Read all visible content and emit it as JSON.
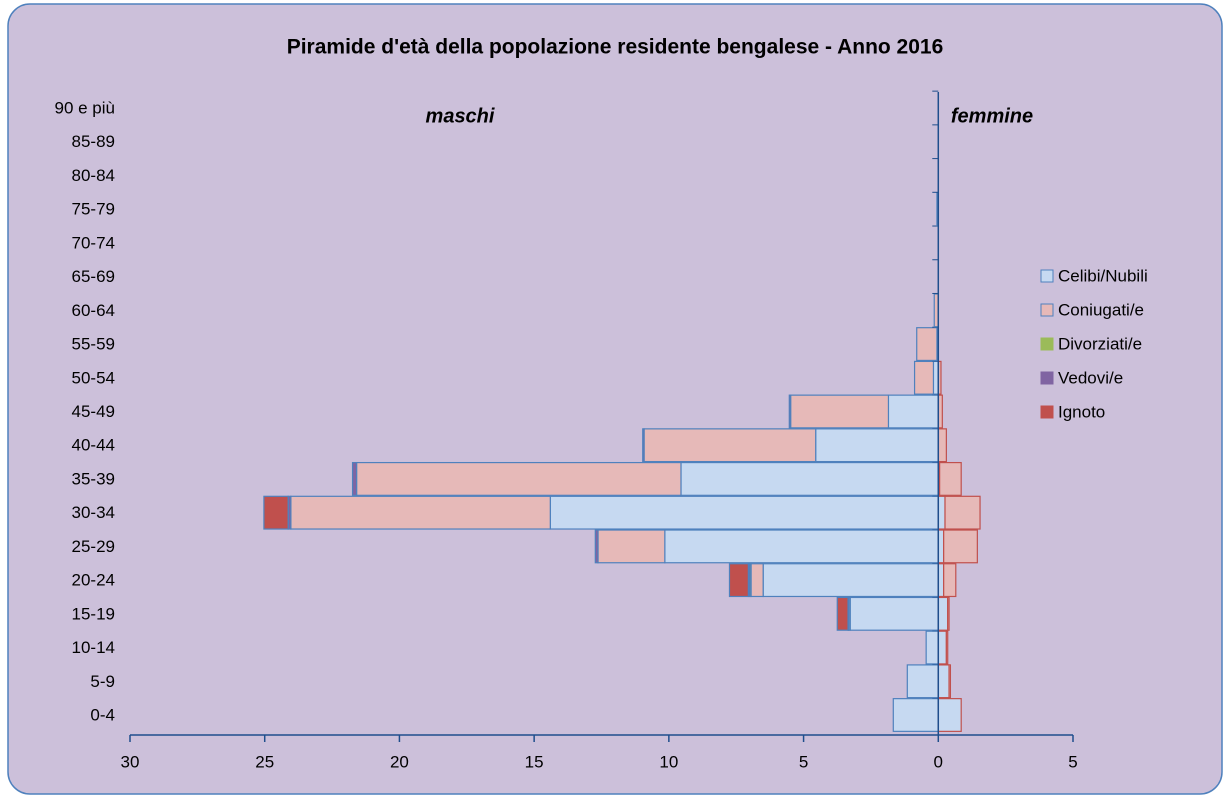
{
  "chart_data": {
    "type": "pyramid",
    "title": "Piramide d'età della popolazione residente  bengalese - Anno 2016",
    "male_label": "maschi",
    "female_label": "femmine",
    "male_color": "#1f4e8c",
    "female_color": "#c0504d",
    "categories": [
      "0-4",
      "5-9",
      "10-14",
      "15-19",
      "20-24",
      "25-29",
      "30-34",
      "35-39",
      "40-44",
      "45-49",
      "50-54",
      "55-59",
      "60-64",
      "65-69",
      "70-74",
      "75-79",
      "80-84",
      "85-89",
      "90 e più"
    ],
    "series": [
      {
        "name": "Celibi/Nubili",
        "color": "#c6d9f1",
        "male": [
          -1.67,
          -1.15,
          -0.45,
          -3.27,
          -6.5,
          -10.15,
          -14.4,
          -9.55,
          -4.55,
          -1.85,
          -0.18,
          -0.05,
          0,
          0,
          0,
          0,
          0,
          0,
          0
        ],
        "female": [
          0.85,
          0.4,
          0.3,
          0.35,
          0.2,
          0.2,
          0.25,
          0.05,
          0,
          0,
          0,
          0,
          0,
          0,
          0,
          0,
          0,
          0,
          0
        ]
      },
      {
        "name": "Coniugati/e",
        "color": "#e6b9b8",
        "male": [
          0,
          0,
          0,
          -0.05,
          -0.45,
          -2.48,
          -9.63,
          -12.04,
          -6.37,
          -3.63,
          -0.7,
          -0.75,
          -0.15,
          0,
          0,
          -0.05,
          0,
          0,
          0
        ],
        "female": [
          0,
          0.05,
          0.05,
          0.05,
          0.45,
          1.25,
          1.3,
          0.8,
          0.3,
          0.15,
          0.1,
          0,
          0,
          0,
          0,
          0,
          0,
          0,
          0
        ]
      },
      {
        "name": "Divorziati/e",
        "color": "#9bbb59",
        "male": [
          0,
          0,
          0,
          0,
          -0.05,
          0,
          0,
          0,
          0,
          0,
          0,
          0,
          0,
          0,
          0,
          0,
          0,
          0,
          0
        ],
        "female": [
          0,
          0,
          0,
          0,
          0,
          0,
          0,
          0,
          0,
          0,
          0,
          0,
          0,
          0,
          0,
          0,
          0,
          0,
          0
        ]
      },
      {
        "name": "Vedovi/e",
        "color": "#8064a2",
        "male": [
          0,
          0,
          0,
          -0.03,
          -0.05,
          -0.1,
          -0.1,
          -0.15,
          -0.05,
          -0.05,
          0,
          0,
          0,
          0,
          0,
          0,
          0,
          0,
          0
        ],
        "female": [
          0,
          0,
          0,
          0,
          0,
          0,
          0,
          0,
          0,
          0,
          0,
          0,
          0,
          0,
          0,
          0,
          0,
          0,
          0
        ]
      },
      {
        "name": "Ignoto",
        "color": "#c0504d",
        "male": [
          0,
          0,
          0,
          -0.4,
          -0.7,
          0,
          -0.9,
          0,
          0,
          0,
          0,
          0,
          0,
          0,
          0,
          0,
          0,
          0,
          0
        ],
        "female": [
          0,
          0,
          0,
          0,
          0,
          0,
          0,
          0,
          0,
          0,
          0,
          0,
          0,
          0,
          0,
          0,
          0,
          0,
          0
        ]
      }
    ],
    "xlim": [
      -30,
      5
    ],
    "xticks": [
      {
        "value": -30,
        "label": "30"
      },
      {
        "value": -25,
        "label": "25"
      },
      {
        "value": -20,
        "label": "20"
      },
      {
        "value": -15,
        "label": "15"
      },
      {
        "value": -10,
        "label": "10"
      },
      {
        "value": -5,
        "label": "5"
      },
      0,
      5
    ],
    "legend": "right"
  }
}
